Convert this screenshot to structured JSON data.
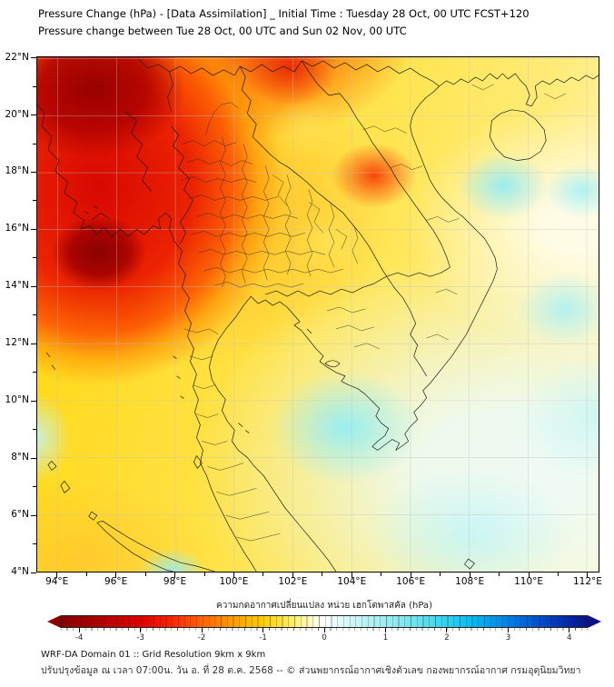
{
  "title": {
    "line1": "Pressure Change (hPa) - [Data Assimilation] _ Initial Time : Tuesday 28 Oct, 00 UTC FCST+120",
    "line2": "Pressure change between Tue 28 Oct, 00 UTC and Sun 02 Nov, 00 UTC"
  },
  "axes": {
    "lat_labels": [
      "22°N",
      "20°N",
      "18°N",
      "16°N",
      "14°N",
      "12°N",
      "10°N",
      "8°N",
      "6°N",
      "4°N"
    ],
    "lon_labels": [
      "94°E",
      "96°E",
      "98°E",
      "100°E",
      "102°E",
      "104°E",
      "106°E",
      "108°E",
      "110°E",
      "112°E"
    ]
  },
  "colorbar": {
    "label": "ความกดอากาศเปลี่ยนแปลง หน่วย เฮกโตพาสคัล (hPa)",
    "tick_labels": [
      "-4",
      "-3",
      "-2",
      "-1",
      "0",
      "1",
      "2",
      "3",
      "4"
    ],
    "min": -4,
    "max": 4,
    "units": "hPa",
    "left_extend_color": "#8c0000",
    "right_extend_color": "#0b1288",
    "palette": [
      "#8c0000",
      "#e10000",
      "#ff6400",
      "#ffcf00",
      "#ffffff",
      "#9feef2",
      "#2fd3f0",
      "#0081e8",
      "#0b1288"
    ]
  },
  "footer": {
    "line1": "WRF-DA Domain 01 :: Grid Resolution 9km x 9km",
    "line2": "ปรับปรุงข้อมูล ณ เวลา 07:00น. วัน อ. ที่ 28 ต.ค. 2568 -- © ส่วนพยากรณ์อากาศเชิงตัวเลข กองพยากรณ์อากาศ กรมอุตุนิยมวิทยา"
  },
  "chart_data": {
    "type": "heatmap",
    "title": "Pressure Change (hPa) - [Data Assimilation] _ Initial Time : Tuesday 28 Oct, 00 UTC FCST+120",
    "subtitle": "Pressure change between Tue 28 Oct, 00 UTC and Sun 02 Nov, 00 UTC",
    "xlabel": "",
    "ylabel": "",
    "x_ticks_deg_e": [
      94,
      96,
      98,
      100,
      102,
      104,
      106,
      108,
      110,
      112
    ],
    "y_ticks_deg_n": [
      4,
      6,
      8,
      10,
      12,
      14,
      16,
      18,
      20,
      22
    ],
    "x_range_deg_e": [
      93.3,
      112.4
    ],
    "y_range_deg_n": [
      4.0,
      22.1
    ],
    "grid": true,
    "legend_position": "bottom-colorbar",
    "colorbar": {
      "label": "ความกดอากาศเปลี่ยนแปลง หน่วย เฮกโตพาสคัล (hPa)",
      "units": "hPa",
      "range": [
        -4,
        4
      ],
      "tick_values": [
        -4,
        -3,
        -2,
        -1,
        0,
        1,
        2,
        3,
        4
      ],
      "extend": "both"
    },
    "field_summary": [
      {
        "lon": 95.0,
        "lat": 20.5,
        "value_hpa": -3.5,
        "desc": "strong pressure-fall center, NW corner (N Myanmar / Bay of Bengal)"
      },
      {
        "lon": 94.3,
        "lat": 16.0,
        "value_hpa": -3.5,
        "desc": "dark-red pressure-fall center near Rakhine coast"
      },
      {
        "lon": 101.7,
        "lat": 21.8,
        "value_hpa": -2.5,
        "desc": "local fall maximum at far north (Laos/China border)"
      },
      {
        "lon": 103.8,
        "lat": 17.8,
        "value_hpa": -2.3,
        "desc": "local fall maximum over northern Laos"
      },
      {
        "lon": 96.8,
        "lat": 13.2,
        "value_hpa": -1.8,
        "desc": "small orange fall maximum over Andaman Sea"
      },
      {
        "lon": 100.0,
        "lat": 15.5,
        "value_hpa": -1.5,
        "desc": "orange band of falls over north/central Thailand"
      },
      {
        "lon": 102.5,
        "lat": 19.5,
        "value_hpa": -1.0,
        "desc": "weaker-fall yellow pocket, N Laos"
      },
      {
        "lon": 108.5,
        "lat": 16.6,
        "value_hpa": 0.8,
        "desc": "pressure-rise patch south of Hainan (Gulf of Tonkin)"
      },
      {
        "lon": 103.5,
        "lat": 9.3,
        "value_hpa": 0.7,
        "desc": "pressure-rise patch over Gulf of Thailand"
      },
      {
        "lon": 110.8,
        "lat": 12.5,
        "value_hpa": 0.5,
        "desc": "pressure-rise patch, South China Sea"
      },
      {
        "lon": 108.0,
        "lat": 6.0,
        "value_hpa": 0.3,
        "desc": "broad weak rises across SE quadrant"
      },
      {
        "lon": 100.0,
        "lat": 7.0,
        "value_hpa": -0.8,
        "desc": "background weak falls (yellow) elsewhere"
      }
    ]
  }
}
